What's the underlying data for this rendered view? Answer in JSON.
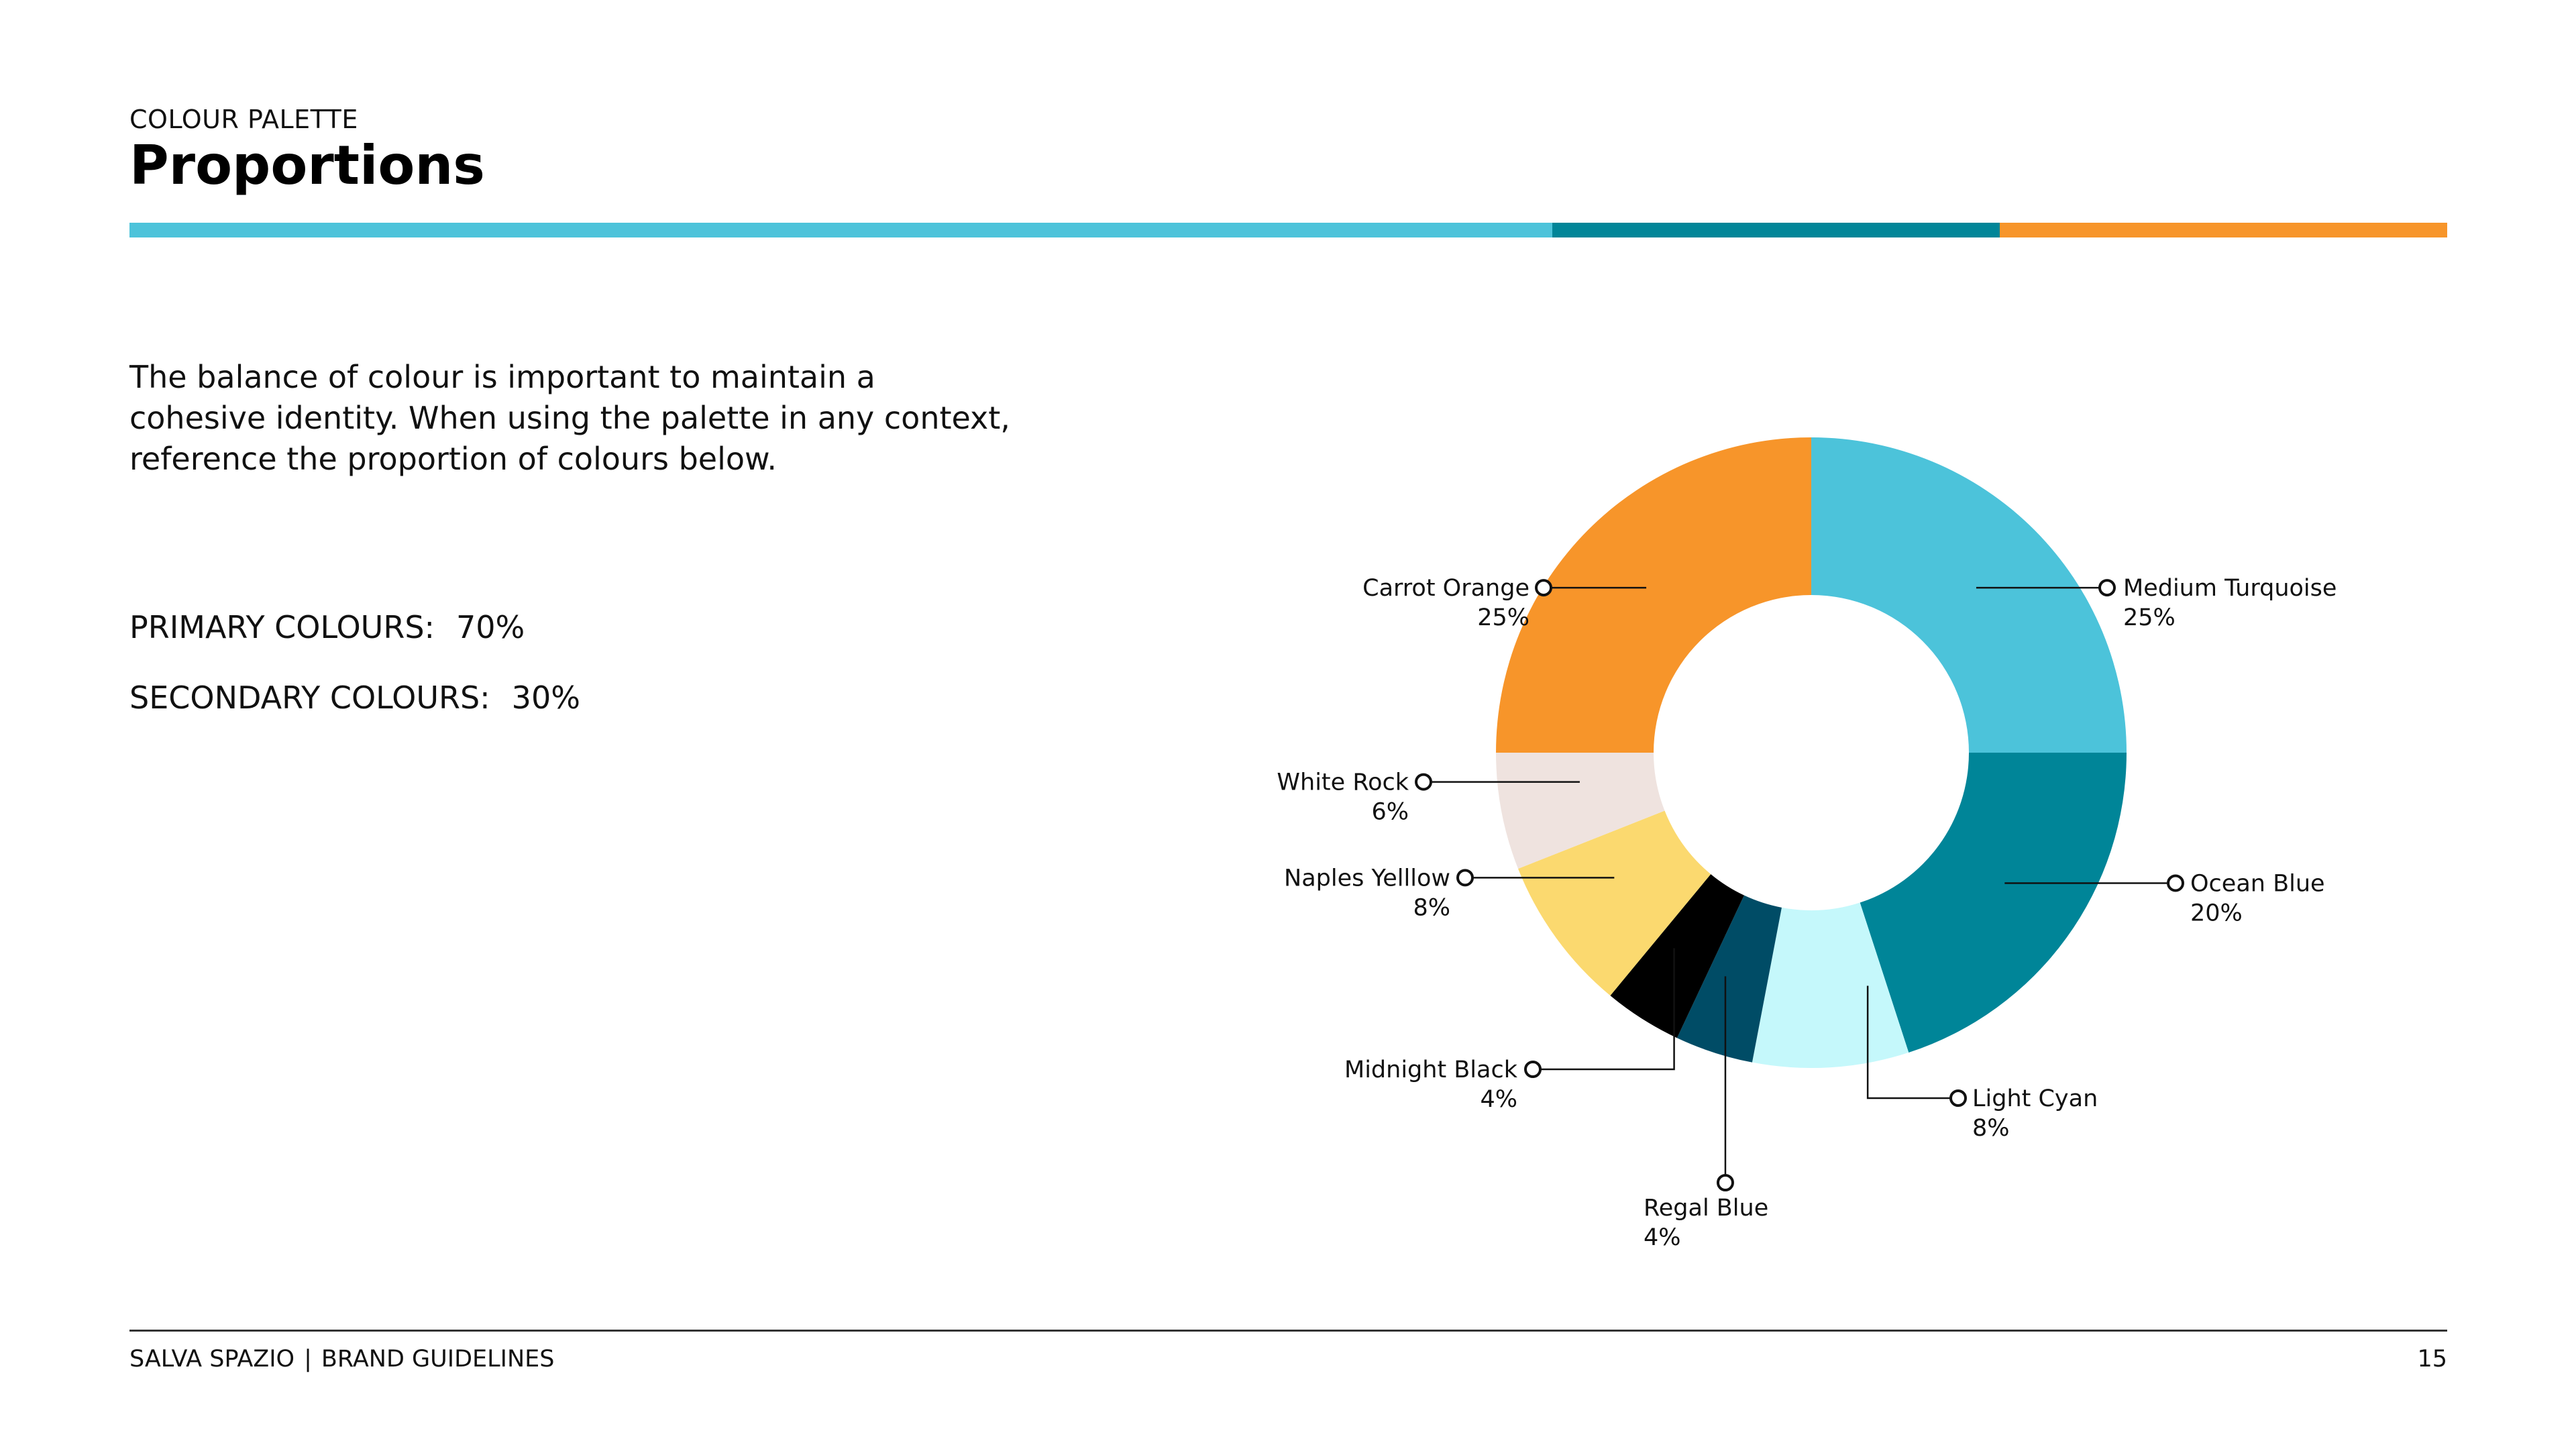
{
  "header": {
    "eyebrow": "COLOUR PALETTE",
    "title": "Proportions"
  },
  "rule_bar": [
    {
      "color": "#4CC3DA",
      "share": 0.614
    },
    {
      "color": "#008598",
      "share": 0.193
    },
    {
      "color": "#F7952A",
      "share": 0.193
    }
  ],
  "intro": {
    "lines": [
      "The balance of colour is important to maintain a",
      "cohesive identity. When using the palette in any context,",
      "reference the proportion of colours below."
    ]
  },
  "stats": {
    "primary_label": "PRIMARY COLOURS:",
    "primary_value": "70%",
    "secondary_label": "SECONDARY COLOURS:",
    "secondary_value": "30%"
  },
  "chart_data": {
    "type": "pie",
    "variant": "donut",
    "title": "",
    "series": [
      {
        "name": "Medium Turquoise",
        "value": 25,
        "label": "25%",
        "color": "#4CC3DA"
      },
      {
        "name": "Ocean Blue",
        "value": 20,
        "label": "20%",
        "color": "#008598"
      },
      {
        "name": "Light Cyan",
        "value": 8,
        "label": "8%",
        "color": "#C5F8FB"
      },
      {
        "name": "Regal Blue",
        "value": 4,
        "label": "4%",
        "color": "#004C66"
      },
      {
        "name": "Midnight Black",
        "value": 4,
        "label": "4%",
        "color": "#000000"
      },
      {
        "name": "Naples Yelllow",
        "value": 8,
        "label": "8%",
        "color": "#FBD96F"
      },
      {
        "name": "White Rock",
        "value": 6,
        "label": "6%",
        "color": "#EFE3DF"
      },
      {
        "name": "Carrot Orange",
        "value": 25,
        "label": "25%",
        "color": "#F7952A"
      }
    ]
  },
  "footer": {
    "brand": "SALVA SPAZIO",
    "separator": "|",
    "doc": "BRAND GUIDELINES",
    "page": "15"
  }
}
